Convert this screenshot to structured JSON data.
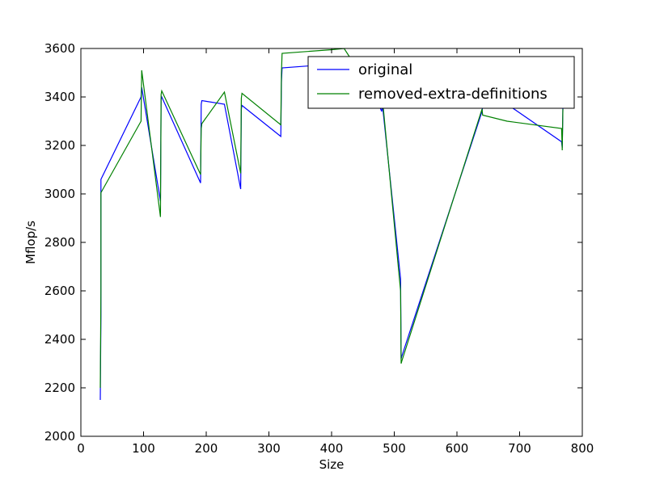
{
  "chart_data": {
    "type": "line",
    "title": "",
    "xlabel": "Size",
    "ylabel": "Mflop/s",
    "xlim": [
      0,
      800
    ],
    "ylim": [
      2000,
      3600
    ],
    "xticks": [
      0,
      100,
      200,
      300,
      400,
      500,
      600,
      700,
      800
    ],
    "yticks": [
      2000,
      2200,
      2400,
      2600,
      2800,
      3000,
      3200,
      3400,
      3600
    ],
    "xtick_labels": [
      "0",
      "100",
      "200",
      "300",
      "400",
      "500",
      "600",
      "700",
      "800"
    ],
    "ytick_labels": [
      "2000",
      "2200",
      "2400",
      "2600",
      "2800",
      "3000",
      "3200",
      "3400",
      "3600"
    ],
    "grid": false,
    "legend": {
      "position": "top-right"
    },
    "series": [
      {
        "name": "original",
        "color": "#0000ff",
        "x": [
          31,
          32,
          32,
          96,
          97,
          127,
          128,
          129,
          191,
          192,
          193,
          229,
          255,
          256,
          257,
          319,
          320,
          321,
          400,
          470,
          480,
          481,
          510,
          511,
          512,
          640,
          641,
          680,
          767,
          768,
          769
        ],
        "y": [
          2150,
          2500,
          3060,
          3400,
          3440,
          2970,
          3390,
          3400,
          3045,
          3370,
          3385,
          3370,
          3020,
          3350,
          3365,
          3237,
          3460,
          3520,
          3535,
          3400,
          3340,
          3370,
          2650,
          2320,
          2330,
          3340,
          3360,
          3370,
          3215,
          3190,
          3355
        ]
      },
      {
        "name": "removed-extra-definitions",
        "color": "#008000",
        "x": [
          31,
          32,
          32,
          96,
          97,
          127,
          128,
          129,
          191,
          192,
          193,
          229,
          255,
          256,
          257,
          319,
          320,
          321,
          400,
          420,
          470,
          480,
          481,
          510,
          511,
          512,
          640,
          641,
          680,
          767,
          768,
          769
        ],
        "y": [
          2200,
          2600,
          3005,
          3300,
          3510,
          2905,
          3410,
          3425,
          3080,
          3270,
          3290,
          3420,
          3085,
          3395,
          3415,
          3285,
          3500,
          3580,
          3595,
          3600,
          3400,
          3360,
          3395,
          2600,
          2300,
          2310,
          3350,
          3325,
          3300,
          3270,
          3180,
          3350
        ]
      }
    ]
  }
}
